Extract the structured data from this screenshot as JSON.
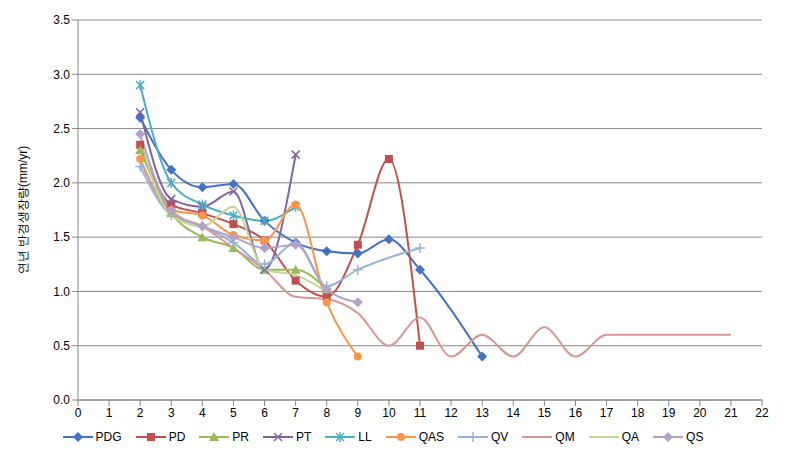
{
  "chart_data": {
    "type": "line",
    "y_label": "연년 반경생장량(mm/yr)",
    "xlim": [
      0,
      22
    ],
    "xticks": [
      0,
      1,
      2,
      3,
      4,
      5,
      6,
      7,
      8,
      9,
      10,
      11,
      12,
      13,
      14,
      15,
      16,
      17,
      18,
      19,
      20,
      21,
      22
    ],
    "ylim": [
      0,
      3.5
    ],
    "yticks": [
      {
        "value": 0,
        "label": "0.0"
      },
      0.5,
      {
        "value": 1,
        "label": "1.0"
      },
      1.5,
      {
        "value": 2,
        "label": "2.0"
      },
      2.5,
      {
        "value": 3,
        "label": "3.0"
      },
      3.5
    ],
    "grid": true,
    "legend": "bottom",
    "series": [
      {
        "name": "PDG",
        "color": "#4472c4",
        "marker": "diamond",
        "x": [
          2,
          3,
          4,
          5,
          6,
          7,
          8,
          9,
          10,
          11,
          13
        ],
        "values": [
          2.6,
          2.12,
          1.96,
          1.99,
          1.65,
          1.45,
          1.37,
          1.35,
          1.48,
          1.2,
          0.4
        ]
      },
      {
        "name": "PD",
        "color": "#c0504d",
        "marker": "square",
        "x": [
          2,
          3,
          4,
          5,
          6,
          7,
          8,
          9,
          10,
          11
        ],
        "values": [
          2.35,
          1.8,
          1.72,
          1.62,
          1.47,
          1.1,
          0.95,
          1.43,
          2.22,
          0.5
        ]
      },
      {
        "name": "PR",
        "color": "#9bbb59",
        "marker": "triangle",
        "x": [
          2,
          3,
          4,
          5,
          6,
          7,
          8
        ],
        "values": [
          2.3,
          1.72,
          1.5,
          1.4,
          1.2,
          1.2,
          1.02
        ]
      },
      {
        "name": "PT",
        "color": "#8064a2",
        "marker": "x",
        "x": [
          2,
          3,
          4,
          5,
          6,
          7
        ],
        "values": [
          2.65,
          1.85,
          1.78,
          1.92,
          1.2,
          2.26
        ]
      },
      {
        "name": "LL",
        "color": "#4bacc6",
        "marker": "star",
        "x": [
          2,
          3,
          4,
          5,
          6,
          7
        ],
        "values": [
          2.9,
          2.0,
          1.8,
          1.7,
          1.65,
          1.78
        ]
      },
      {
        "name": "QAS",
        "color": "#f79646",
        "marker": "circle",
        "x": [
          2,
          3,
          4,
          5,
          6,
          7,
          8,
          9
        ],
        "values": [
          2.22,
          1.75,
          1.7,
          1.52,
          1.47,
          1.8,
          0.9,
          0.4
        ]
      },
      {
        "name": "QV",
        "color": "#95b3d7",
        "marker": "plus",
        "x": [
          2,
          3,
          4,
          5,
          6,
          7,
          8,
          9,
          11
        ],
        "values": [
          2.15,
          1.7,
          1.6,
          1.45,
          1.25,
          1.45,
          1.05,
          1.2,
          1.4
        ]
      },
      {
        "name": "QM",
        "color": "#d99694",
        "marker": "none",
        "x": [
          2,
          3,
          4,
          5,
          6,
          7,
          8,
          9,
          10,
          11,
          12,
          13,
          14,
          15,
          16,
          17,
          21
        ],
        "values": [
          2.2,
          1.72,
          1.6,
          1.4,
          1.2,
          0.95,
          0.93,
          0.8,
          0.5,
          0.76,
          0.4,
          0.6,
          0.4,
          0.67,
          0.4,
          0.6,
          0.6
        ]
      },
      {
        "name": "QA",
        "color": "#c3d69b",
        "marker": "none",
        "x": [
          2,
          3,
          4,
          5,
          6,
          7,
          8
        ],
        "values": [
          2.4,
          1.7,
          1.6,
          1.78,
          1.2,
          1.15,
          1.0
        ]
      },
      {
        "name": "QS",
        "color": "#b3a2c7",
        "marker": "diamond",
        "x": [
          2,
          3,
          4,
          5,
          6,
          7,
          8,
          9
        ],
        "values": [
          2.45,
          1.75,
          1.6,
          1.5,
          1.4,
          1.43,
          1.02,
          0.9
        ]
      }
    ]
  }
}
